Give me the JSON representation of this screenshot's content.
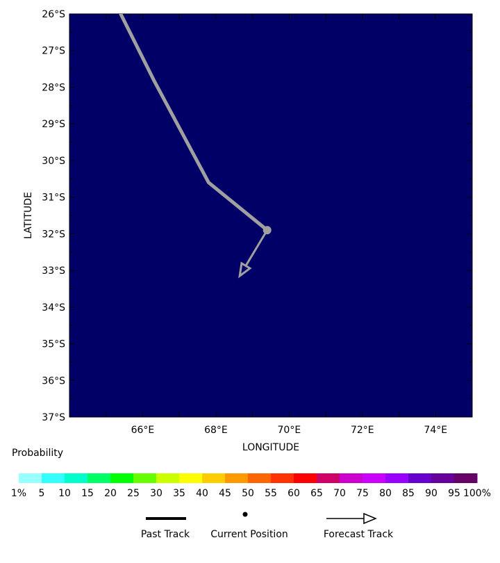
{
  "map": {
    "background_color": "#000066",
    "lat_range": [
      -37,
      -26
    ],
    "lon_range": [
      64,
      75
    ],
    "lat_ticks": [
      -26,
      -27,
      -28,
      -29,
      -30,
      -31,
      -32,
      -33,
      -34,
      -35,
      -36,
      -37
    ],
    "lat_tick_labels": [
      "26°S",
      "27°S",
      "28°S",
      "29°S",
      "30°S",
      "31°S",
      "32°S",
      "33°S",
      "34°S",
      "35°S",
      "36°S",
      "37°S"
    ],
    "lon_ticks": [
      66,
      68,
      70,
      72,
      74
    ],
    "lon_tick_labels": [
      "66°E",
      "68°E",
      "70°E",
      "72°E",
      "74°E"
    ],
    "x_axis_label": "LONGITUDE",
    "y_axis_label": "LATITUDE"
  },
  "track": {
    "past_track_color": "#a0a0a0",
    "past_track": [
      {
        "lon": 65.4,
        "lat": -26.0
      },
      {
        "lon": 66.3,
        "lat": -27.8
      },
      {
        "lon": 67.8,
        "lat": -30.6
      },
      {
        "lon": 69.4,
        "lat": -31.9
      }
    ],
    "current_position": {
      "lon": 69.4,
      "lat": -31.9
    },
    "forecast_track": [
      {
        "lon": 69.4,
        "lat": -31.9
      },
      {
        "lon": 68.65,
        "lat": -33.15
      }
    ]
  },
  "colorbar": {
    "title": "Probability",
    "colors": [
      "#99ffff",
      "#33ffff",
      "#00ffcc",
      "#00ff66",
      "#00ff00",
      "#66ff00",
      "#ccff00",
      "#ffff00",
      "#ffcc00",
      "#ff9900",
      "#ff6600",
      "#ff3300",
      "#ff0000",
      "#cc0066",
      "#cc00cc",
      "#cc00ff",
      "#9900ff",
      "#6600cc",
      "#660099",
      "#660066"
    ],
    "labels": [
      "1%",
      "5",
      "10",
      "15",
      "20",
      "25",
      "30",
      "35",
      "40",
      "45",
      "50",
      "55",
      "60",
      "65",
      "70",
      "75",
      "80",
      "85",
      "90",
      "95",
      "100%"
    ]
  },
  "legend": {
    "past_track_label": "Past Track",
    "current_position_label": "Current Position",
    "forecast_track_label": "Forecast Track"
  }
}
